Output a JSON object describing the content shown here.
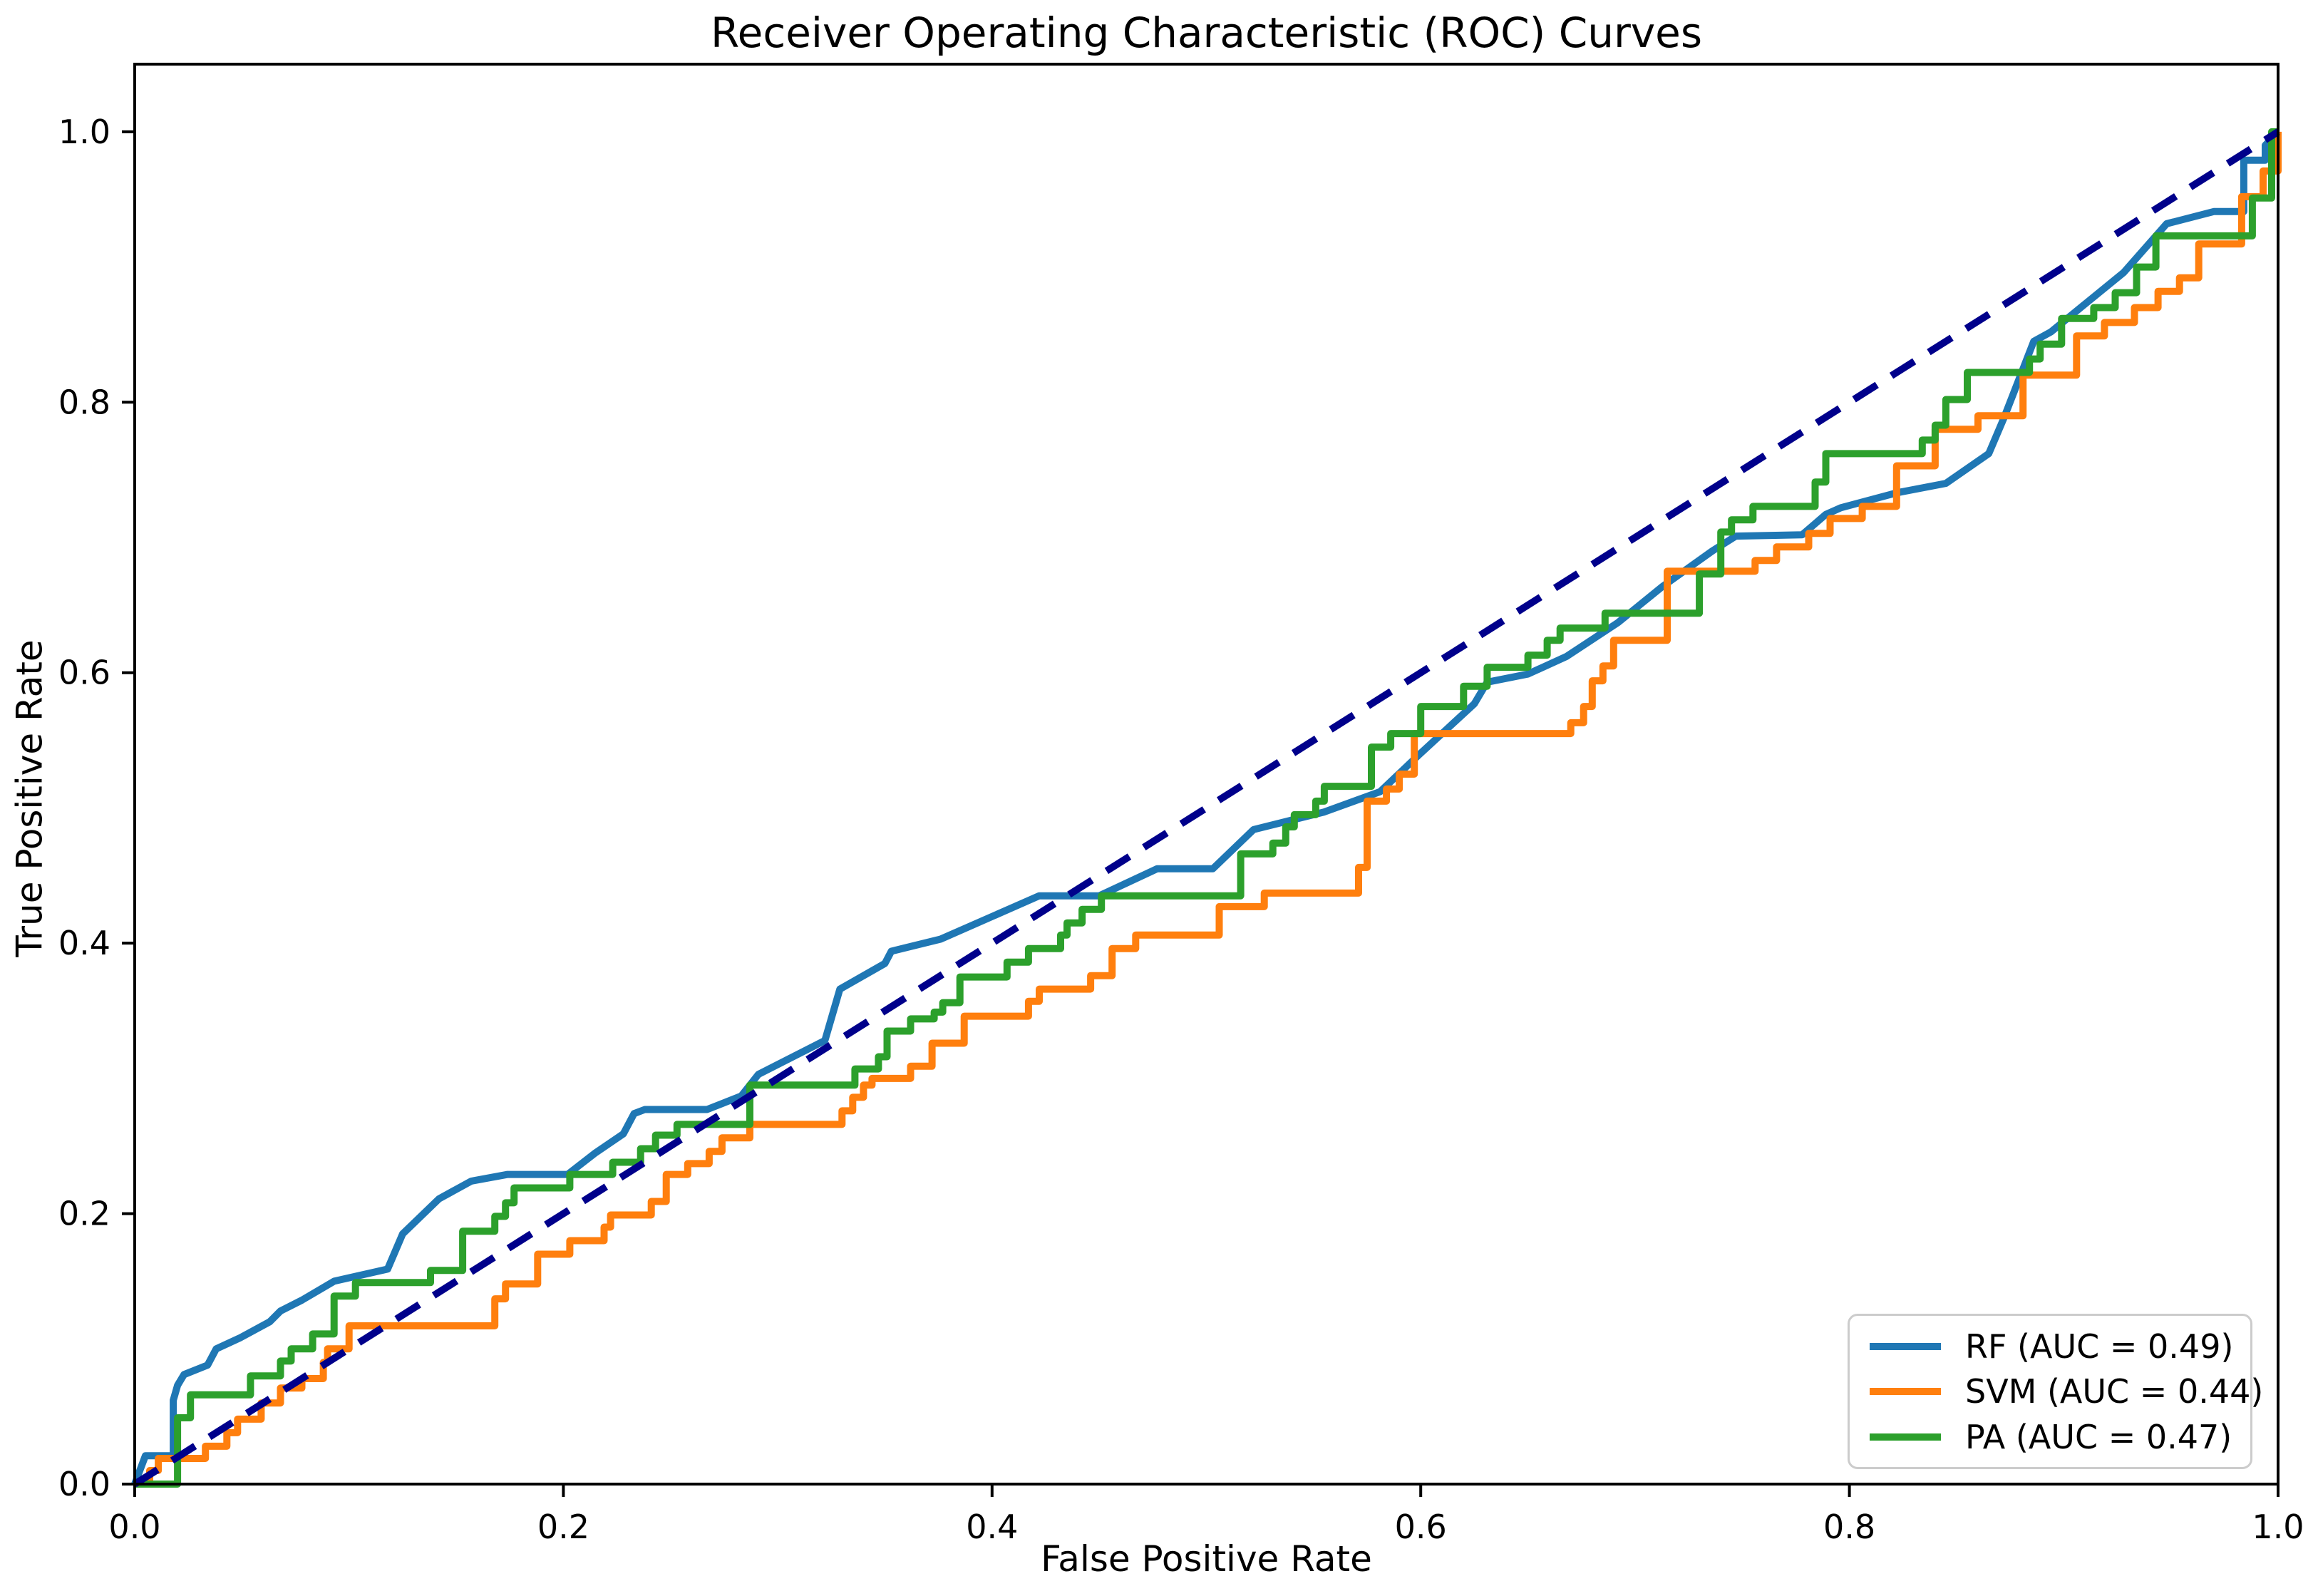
{
  "chart_data": {
    "type": "line",
    "title": "Receiver Operating Characteristic (ROC) Curves",
    "xlabel": "False Positive Rate",
    "ylabel": "True Positive Rate",
    "xlim": [
      0.0,
      1.0
    ],
    "ylim": [
      0.0,
      1.05
    ],
    "x_ticks": [
      "0.0",
      "0.2",
      "0.4",
      "0.6",
      "0.8",
      "1.0"
    ],
    "y_ticks": [
      "0.0",
      "0.2",
      "0.4",
      "0.6",
      "0.8",
      "1.0"
    ],
    "grid": false,
    "legend_position": "lower right",
    "axis_color": "#000000",
    "series": [
      {
        "name": "RF",
        "label": "RF (AUC = 0.49)",
        "auc": 0.49,
        "color": "#1f77b4",
        "style": "solid",
        "step": false,
        "in_legend": true,
        "points": [
          [
            0.0,
            0.0
          ],
          [
            0.005,
            0.021
          ],
          [
            0.018,
            0.021
          ],
          [
            0.018,
            0.062
          ],
          [
            0.02,
            0.073
          ],
          [
            0.023,
            0.081
          ],
          [
            0.034,
            0.088
          ],
          [
            0.038,
            0.1
          ],
          [
            0.049,
            0.108
          ],
          [
            0.063,
            0.12
          ],
          [
            0.068,
            0.128
          ],
          [
            0.078,
            0.136
          ],
          [
            0.093,
            0.15
          ],
          [
            0.118,
            0.159
          ],
          [
            0.125,
            0.185
          ],
          [
            0.142,
            0.211
          ],
          [
            0.157,
            0.224
          ],
          [
            0.174,
            0.229
          ],
          [
            0.202,
            0.229
          ],
          [
            0.215,
            0.245
          ],
          [
            0.228,
            0.259
          ],
          [
            0.233,
            0.274
          ],
          [
            0.238,
            0.277
          ],
          [
            0.267,
            0.277
          ],
          [
            0.283,
            0.287
          ],
          [
            0.291,
            0.303
          ],
          [
            0.322,
            0.328
          ],
          [
            0.329,
            0.366
          ],
          [
            0.35,
            0.385
          ],
          [
            0.353,
            0.394
          ],
          [
            0.376,
            0.403
          ],
          [
            0.422,
            0.435
          ],
          [
            0.45,
            0.435
          ],
          [
            0.477,
            0.455
          ],
          [
            0.503,
            0.455
          ],
          [
            0.522,
            0.484
          ],
          [
            0.555,
            0.497
          ],
          [
            0.581,
            0.512
          ],
          [
            0.599,
            0.539
          ],
          [
            0.625,
            0.577
          ],
          [
            0.631,
            0.593
          ],
          [
            0.65,
            0.599
          ],
          [
            0.668,
            0.612
          ],
          [
            0.692,
            0.637
          ],
          [
            0.713,
            0.664
          ],
          [
            0.736,
            0.69
          ],
          [
            0.747,
            0.701
          ],
          [
            0.778,
            0.702
          ],
          [
            0.789,
            0.717
          ],
          [
            0.796,
            0.722
          ],
          [
            0.822,
            0.733
          ],
          [
            0.845,
            0.74
          ],
          [
            0.865,
            0.762
          ],
          [
            0.872,
            0.788
          ],
          [
            0.886,
            0.845
          ],
          [
            0.894,
            0.852
          ],
          [
            0.928,
            0.896
          ],
          [
            0.948,
            0.932
          ],
          [
            0.97,
            0.941
          ],
          [
            0.984,
            0.941
          ],
          [
            0.984,
            0.979
          ],
          [
            0.994,
            0.979
          ],
          [
            0.994,
            0.99
          ],
          [
            1.0,
            1.0
          ]
        ]
      },
      {
        "name": "SVM",
        "label": "SVM (AUC = 0.44)",
        "auc": 0.44,
        "color": "#ff7f0e",
        "style": "solid",
        "step": true,
        "in_legend": true,
        "points": [
          [
            0.0,
            0.0
          ],
          [
            0.007,
            0.01
          ],
          [
            0.011,
            0.019
          ],
          [
            0.033,
            0.028
          ],
          [
            0.043,
            0.038
          ],
          [
            0.048,
            0.048
          ],
          [
            0.059,
            0.06
          ],
          [
            0.068,
            0.071
          ],
          [
            0.078,
            0.078
          ],
          [
            0.088,
            0.09
          ],
          [
            0.09,
            0.1
          ],
          [
            0.1,
            0.117
          ],
          [
            0.168,
            0.137
          ],
          [
            0.173,
            0.148
          ],
          [
            0.188,
            0.17
          ],
          [
            0.203,
            0.18
          ],
          [
            0.219,
            0.19
          ],
          [
            0.222,
            0.199
          ],
          [
            0.241,
            0.209
          ],
          [
            0.248,
            0.229
          ],
          [
            0.258,
            0.237
          ],
          [
            0.268,
            0.246
          ],
          [
            0.274,
            0.256
          ],
          [
            0.287,
            0.266
          ],
          [
            0.33,
            0.276
          ],
          [
            0.335,
            0.286
          ],
          [
            0.34,
            0.295
          ],
          [
            0.344,
            0.3
          ],
          [
            0.362,
            0.309
          ],
          [
            0.372,
            0.326
          ],
          [
            0.387,
            0.346
          ],
          [
            0.417,
            0.357
          ],
          [
            0.422,
            0.366
          ],
          [
            0.446,
            0.376
          ],
          [
            0.456,
            0.396
          ],
          [
            0.467,
            0.406
          ],
          [
            0.506,
            0.427
          ],
          [
            0.527,
            0.437
          ],
          [
            0.571,
            0.456
          ],
          [
            0.575,
            0.505
          ],
          [
            0.584,
            0.514
          ],
          [
            0.59,
            0.525
          ],
          [
            0.597,
            0.555
          ],
          [
            0.67,
            0.563
          ],
          [
            0.676,
            0.575
          ],
          [
            0.68,
            0.594
          ],
          [
            0.685,
            0.605
          ],
          [
            0.69,
            0.624
          ],
          [
            0.715,
            0.675
          ],
          [
            0.756,
            0.683
          ],
          [
            0.766,
            0.693
          ],
          [
            0.781,
            0.703
          ],
          [
            0.791,
            0.714
          ],
          [
            0.806,
            0.723
          ],
          [
            0.822,
            0.753
          ],
          [
            0.84,
            0.78
          ],
          [
            0.86,
            0.79
          ],
          [
            0.881,
            0.82
          ],
          [
            0.906,
            0.849
          ],
          [
            0.919,
            0.859
          ],
          [
            0.933,
            0.87
          ],
          [
            0.944,
            0.882
          ],
          [
            0.954,
            0.892
          ],
          [
            0.963,
            0.917
          ],
          [
            0.983,
            0.952
          ],
          [
            0.993,
            0.971
          ],
          [
            1.0,
            1.0
          ]
        ]
      },
      {
        "name": "PA",
        "label": "PA (AUC = 0.47)",
        "auc": 0.47,
        "color": "#2ca02c",
        "style": "solid",
        "step": true,
        "in_legend": true,
        "points": [
          [
            0.0,
            0.0
          ],
          [
            0.02,
            0.049
          ],
          [
            0.026,
            0.066
          ],
          [
            0.054,
            0.08
          ],
          [
            0.068,
            0.091
          ],
          [
            0.073,
            0.1
          ],
          [
            0.083,
            0.111
          ],
          [
            0.093,
            0.139
          ],
          [
            0.103,
            0.149
          ],
          [
            0.138,
            0.158
          ],
          [
            0.153,
            0.187
          ],
          [
            0.168,
            0.198
          ],
          [
            0.173,
            0.208
          ],
          [
            0.177,
            0.219
          ],
          [
            0.203,
            0.229
          ],
          [
            0.223,
            0.238
          ],
          [
            0.236,
            0.248
          ],
          [
            0.243,
            0.258
          ],
          [
            0.253,
            0.266
          ],
          [
            0.287,
            0.295
          ],
          [
            0.336,
            0.307
          ],
          [
            0.347,
            0.316
          ],
          [
            0.351,
            0.335
          ],
          [
            0.362,
            0.344
          ],
          [
            0.373,
            0.349
          ],
          [
            0.377,
            0.356
          ],
          [
            0.385,
            0.375
          ],
          [
            0.407,
            0.386
          ],
          [
            0.417,
            0.396
          ],
          [
            0.432,
            0.406
          ],
          [
            0.435,
            0.415
          ],
          [
            0.442,
            0.425
          ],
          [
            0.451,
            0.435
          ],
          [
            0.516,
            0.466
          ],
          [
            0.531,
            0.474
          ],
          [
            0.537,
            0.486
          ],
          [
            0.541,
            0.495
          ],
          [
            0.551,
            0.505
          ],
          [
            0.555,
            0.516
          ],
          [
            0.577,
            0.545
          ],
          [
            0.586,
            0.555
          ],
          [
            0.6,
            0.575
          ],
          [
            0.62,
            0.59
          ],
          [
            0.631,
            0.604
          ],
          [
            0.65,
            0.613
          ],
          [
            0.659,
            0.624
          ],
          [
            0.665,
            0.633
          ],
          [
            0.686,
            0.644
          ],
          [
            0.73,
            0.673
          ],
          [
            0.74,
            0.704
          ],
          [
            0.745,
            0.713
          ],
          [
            0.755,
            0.723
          ],
          [
            0.784,
            0.741
          ],
          [
            0.789,
            0.762
          ],
          [
            0.834,
            0.772
          ],
          [
            0.84,
            0.783
          ],
          [
            0.845,
            0.802
          ],
          [
            0.855,
            0.822
          ],
          [
            0.884,
            0.832
          ],
          [
            0.889,
            0.843
          ],
          [
            0.899,
            0.862
          ],
          [
            0.914,
            0.87
          ],
          [
            0.924,
            0.881
          ],
          [
            0.934,
            0.9
          ],
          [
            0.943,
            0.923
          ],
          [
            0.988,
            0.951
          ],
          [
            0.997,
            1.0
          ],
          [
            1.0,
            1.0
          ]
        ]
      },
      {
        "name": "chance-diagonal",
        "label": "",
        "color": "#00008b",
        "style": "dashed",
        "step": false,
        "in_legend": false,
        "points": [
          [
            0.0,
            0.0
          ],
          [
            1.0,
            1.0
          ]
        ]
      }
    ]
  }
}
